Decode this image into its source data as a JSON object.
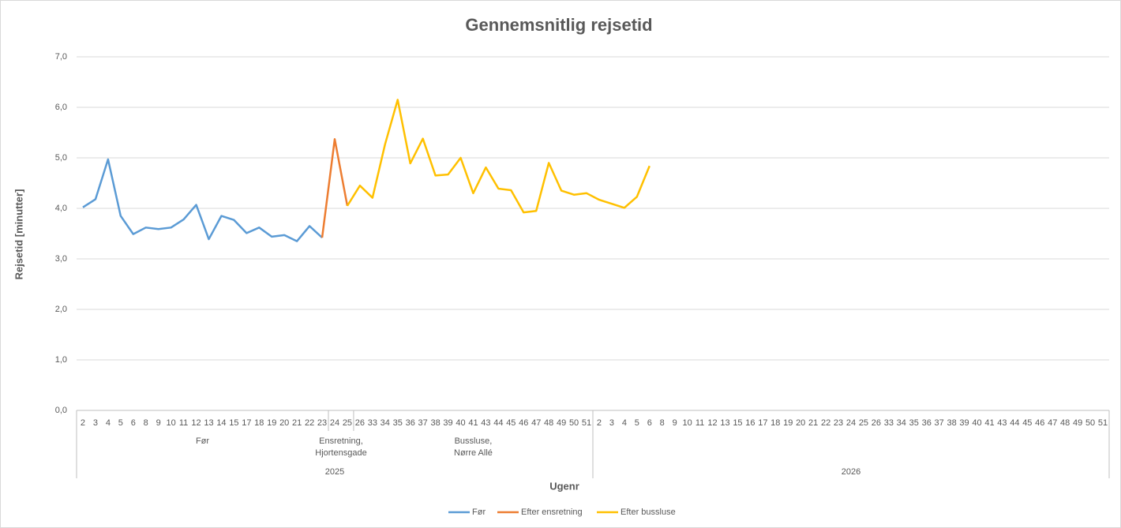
{
  "chart_data": {
    "type": "line",
    "title": "Gennemsnitlig rejsetid",
    "y_label": "Rejsetid [minutter]",
    "x_label": "Ugenr",
    "years": [
      {
        "label": "2025",
        "phases": [
          {
            "label": "Før",
            "weeks": [
              2,
              3,
              4,
              5,
              6,
              8,
              9,
              10,
              11,
              12,
              13,
              14,
              15,
              17,
              18,
              19,
              20,
              21,
              22,
              23
            ]
          },
          {
            "label": "Ensretning,\nHjortensgade",
            "weeks": [
              24,
              25
            ]
          },
          {
            "label": "Bussluse,\nNørre Allé",
            "weeks": [
              26,
              33,
              34,
              35,
              36,
              37,
              38,
              39,
              40,
              41,
              43,
              44,
              45,
              46,
              47,
              48,
              49,
              50,
              51
            ]
          }
        ]
      },
      {
        "label": "2026",
        "phases": [
          {
            "label": null,
            "weeks": [
              2,
              3,
              4,
              5,
              6,
              8,
              9,
              10,
              11,
              12,
              13,
              15,
              16,
              17,
              18,
              19,
              20,
              21,
              22,
              23,
              24,
              25,
              26,
              33,
              34,
              35,
              36,
              37,
              38,
              39,
              40,
              41,
              43,
              44,
              45,
              46,
              47,
              48,
              49,
              50,
              51
            ]
          }
        ]
      }
    ],
    "series": [
      {
        "name": "Før",
        "color": "#5b9bd5",
        "values": [
          4.02,
          4.18,
          4.97,
          3.85,
          3.49,
          3.62,
          3.59,
          3.62,
          3.78,
          4.07,
          3.39,
          3.85,
          3.77,
          3.51,
          3.62,
          3.44,
          3.47,
          3.35,
          3.65,
          3.42,
          null,
          null,
          null,
          null,
          null,
          null,
          null,
          null,
          null,
          null,
          null,
          null,
          null,
          null,
          null,
          null,
          null,
          null,
          null,
          null,
          null,
          null,
          null,
          null,
          null,
          null,
          null,
          null,
          null,
          null,
          null,
          null,
          null,
          null,
          null,
          null,
          null,
          null,
          null,
          null,
          null,
          null,
          null,
          null,
          null,
          null,
          null,
          null,
          null,
          null,
          null,
          null,
          null,
          null,
          null,
          null,
          null,
          null,
          null,
          null,
          null,
          null
        ]
      },
      {
        "name": "Efter ensretning",
        "color": "#ed7d31",
        "values": [
          null,
          null,
          null,
          null,
          null,
          null,
          null,
          null,
          null,
          null,
          null,
          null,
          null,
          null,
          null,
          null,
          null,
          null,
          null,
          3.42,
          5.37,
          4.05,
          null,
          null,
          null,
          null,
          null,
          null,
          null,
          null,
          null,
          null,
          null,
          null,
          null,
          null,
          null,
          null,
          null,
          null,
          null,
          null,
          null,
          null,
          null,
          null,
          null,
          null,
          null,
          null,
          null,
          null,
          null,
          null,
          null,
          null,
          null,
          null,
          null,
          null,
          null,
          null,
          null,
          null,
          null,
          null,
          null,
          null,
          null,
          null,
          null,
          null,
          null,
          null,
          null,
          null,
          null,
          null,
          null,
          null,
          null,
          null
        ]
      },
      {
        "name": "Efter bussluse",
        "color": "#ffc000",
        "values": [
          null,
          null,
          null,
          null,
          null,
          null,
          null,
          null,
          null,
          null,
          null,
          null,
          null,
          null,
          null,
          null,
          null,
          null,
          null,
          null,
          null,
          4.05,
          4.45,
          4.21,
          5.27,
          6.15,
          4.89,
          5.38,
          4.65,
          4.67,
          5.0,
          4.3,
          4.81,
          4.39,
          4.36,
          3.92,
          3.95,
          4.9,
          4.35,
          4.27,
          4.3,
          4.17,
          4.09,
          4.01,
          4.23,
          4.84,
          null,
          null,
          null,
          null,
          null,
          null,
          null,
          null,
          null,
          null,
          null,
          null,
          null,
          null,
          null,
          null,
          null,
          null,
          null,
          null,
          null,
          null,
          null,
          null,
          null,
          null,
          null,
          null,
          null,
          null,
          null,
          null,
          null,
          null,
          null,
          null
        ]
      }
    ],
    "ylim": [
      0,
      7
    ],
    "yticks": [
      {
        "value": 0,
        "label": "0,0"
      },
      {
        "value": 1,
        "label": "1,0"
      },
      {
        "value": 2,
        "label": "2,0"
      },
      {
        "value": 3,
        "label": "3,0"
      },
      {
        "value": 4,
        "label": "4,0"
      },
      {
        "value": 5,
        "label": "5,0"
      },
      {
        "value": 6,
        "label": "6,0"
      },
      {
        "value": 7,
        "label": "7,0"
      }
    ],
    "grid": true,
    "legend": "bottom"
  }
}
